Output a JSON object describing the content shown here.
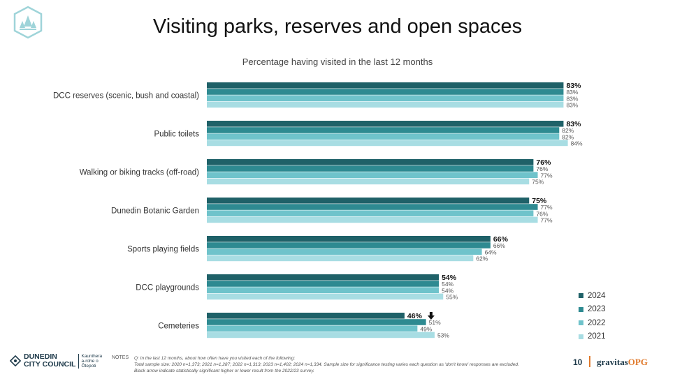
{
  "page": {
    "title": "Visiting parks, reserves and open spaces",
    "page_number": "10"
  },
  "footer": {
    "council_name_line1": "DUNEDIN",
    "council_name_line2": "CITY COUNCIL",
    "council_maori_line1": "Kaunihera",
    "council_maori_line2": "a-rohe o",
    "council_maori_line3": "Ōtepoti",
    "notes_label": "NOTES",
    "notes_line1": "Q: In the last 12 months, about how often have you visited each of the following:",
    "notes_line2": "Total sample size: 2020 n=1,373; 2021 n=1,287; 2022 n=1,313; 2023 n=1,402; 2024 n=1,334. Sample size for significance testing varies each question as 'don't know' responses are excluded.",
    "notes_line3": "Black arrow indicate statistically significant higher or lower result from the 2022/23 survey.",
    "brand_main": "gravitas",
    "brand_suffix": "OPG"
  },
  "colors": {
    "2024": "#1f6168",
    "2023": "#2e8a91",
    "2022": "#6fc3cb",
    "2021": "#a8dde3"
  },
  "chart_data": {
    "type": "bar",
    "orientation": "horizontal",
    "title": "Percentage having visited in the last 12 months",
    "categories": [
      "DCC reserves (scenic, bush and coastal)",
      "Public toilets",
      "Walking or biking tracks (off-road)",
      "Dunedin Botanic Garden",
      "Sports playing fields",
      "DCC playgrounds",
      "Cemeteries"
    ],
    "series": [
      {
        "name": "2024",
        "values": [
          83,
          83,
          76,
          75,
          66,
          54,
          46
        ],
        "labels": [
          "83%",
          "83%",
          "76%",
          "75%",
          "66%",
          "54%",
          "46%"
        ]
      },
      {
        "name": "2023",
        "values": [
          83,
          82,
          76,
          77,
          66,
          54,
          51
        ],
        "labels": [
          "83%",
          "82%",
          "76%",
          "77%",
          "66%",
          "54%",
          "51%"
        ]
      },
      {
        "name": "2022",
        "values": [
          83,
          82,
          77,
          76,
          64,
          54,
          49
        ],
        "labels": [
          "83%",
          "82%",
          "77%",
          "76%",
          "64%",
          "54%",
          "49%"
        ]
      },
      {
        "name": "2021",
        "values": [
          83,
          84,
          75,
          77,
          62,
          55,
          53
        ],
        "labels": [
          "83%",
          "84%",
          "75%",
          "77%",
          "62%",
          "55%",
          "53%"
        ]
      }
    ],
    "significance_arrows": [
      {
        "category": "Cemeteries",
        "series": "2024",
        "direction": "down"
      }
    ],
    "legend": [
      "2024",
      "2023",
      "2022",
      "2021"
    ],
    "legend_position": "bottom-right",
    "xlim": [
      0,
      100
    ],
    "grid": false
  }
}
